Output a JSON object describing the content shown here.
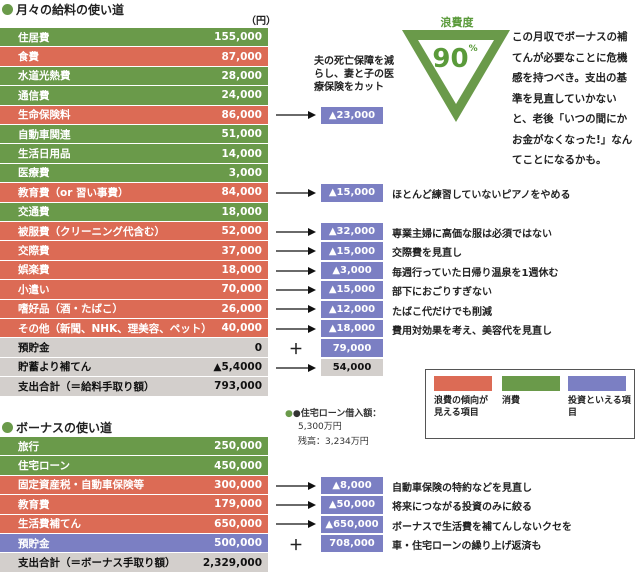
{
  "salary": {
    "title": "月々の給料の使い道",
    "unit": "（円）",
    "rows": [
      {
        "label": "住居費",
        "value": "155,000",
        "color": "green"
      },
      {
        "label": "食費",
        "value": "87,000",
        "color": "red"
      },
      {
        "label": "水道光熱費",
        "value": "28,000",
        "color": "green"
      },
      {
        "label": "通信費",
        "value": "24,000",
        "color": "green"
      },
      {
        "label": "生命保険料",
        "value": "86,000",
        "color": "red"
      },
      {
        "label": "自動車関連",
        "value": "51,000",
        "color": "green"
      },
      {
        "label": "生活日用品",
        "value": "14,000",
        "color": "green"
      },
      {
        "label": "医療費",
        "value": "3,000",
        "color": "green"
      },
      {
        "label": "教育費（or 習い事費）",
        "value": "84,000",
        "color": "red"
      },
      {
        "label": "交通費",
        "value": "18,000",
        "color": "green"
      },
      {
        "label": "被服費（クリーニング代含む）",
        "value": "52,000",
        "color": "red"
      },
      {
        "label": "交際費",
        "value": "37,000",
        "color": "red"
      },
      {
        "label": "娯楽費",
        "value": "18,000",
        "color": "red"
      },
      {
        "label": "小遣い",
        "value": "70,000",
        "color": "red"
      },
      {
        "label": "嗜好品（酒・たばこ）",
        "value": "26,000",
        "color": "red"
      },
      {
        "label": "その他（新聞、NHK、理美容、ペット）",
        "value": "40,000",
        "color": "red"
      },
      {
        "label": "預貯金",
        "value": "0",
        "color": "gray"
      },
      {
        "label": "貯蓄より補てん",
        "value": "▲5,4000",
        "color": "gray"
      },
      {
        "label": "支出合計（＝給料手取り額）",
        "value": "793,000",
        "color": "gray"
      }
    ],
    "adjustments": [
      {
        "row": 4,
        "sym": "→",
        "value": "▲23,000",
        "note": "",
        "box": "blue"
      },
      {
        "row": 8,
        "sym": "→",
        "value": "▲15,000",
        "note": "ほとんど練習していないピアノをやめる",
        "box": "blue"
      },
      {
        "row": 10,
        "sym": "→",
        "value": "▲32,000",
        "note": "専業主婦に高価な服は必須ではない",
        "box": "blue"
      },
      {
        "row": 11,
        "sym": "→",
        "value": "▲15,000",
        "note": "交際費を見直し",
        "box": "blue"
      },
      {
        "row": 12,
        "sym": "→",
        "value": "▲3,000",
        "note": "毎週行っていた日帰り温泉を1週休む",
        "box": "blue"
      },
      {
        "row": 13,
        "sym": "→",
        "value": "▲15,000",
        "note": "部下におごりすぎない",
        "box": "blue"
      },
      {
        "row": 14,
        "sym": "→",
        "value": "▲12,000",
        "note": "たばこ代だけでも削減",
        "box": "blue"
      },
      {
        "row": 15,
        "sym": "→",
        "value": "▲18,000",
        "note": "費用対効果を考え、美容代を見直し",
        "box": "blue"
      },
      {
        "row": 16,
        "sym": "＋",
        "value": "79,000",
        "note": "",
        "box": "blue"
      },
      {
        "row": 17,
        "sym": "→",
        "value": "54,000",
        "note": "",
        "box": "gray"
      }
    ],
    "insurance_note": "夫の死亡保障を減らし、妻と子の医療保険をカット"
  },
  "waste": {
    "label": "浪費度",
    "percent": "90",
    "percent_sign": "%",
    "comment": "この月収でボーナスの補てんが必要なことに危機感を持つべき。支出の基準を見直していかないと、老後「いつの間にかお金がなくなった!」なんてことになるかも。"
  },
  "legend": [
    {
      "label": "浪費の傾向が見える項目",
      "color": "#dc6b55"
    },
    {
      "label": "消費",
      "color": "#6a9a4a"
    },
    {
      "label": "投資といえる項目",
      "color": "#7b7fc3"
    }
  ],
  "loan": {
    "title": "●住宅ローン借入額：",
    "amount": "5,300万円",
    "remaining": "残高：3,234万円"
  },
  "bonus": {
    "title": "ボーナスの使い道",
    "rows": [
      {
        "label": "旅行",
        "value": "250,000",
        "color": "green"
      },
      {
        "label": "住宅ローン",
        "value": "450,000",
        "color": "green"
      },
      {
        "label": "固定資産税・自動車保険等",
        "value": "300,000",
        "color": "red"
      },
      {
        "label": "教育費",
        "value": "179,000",
        "color": "red"
      },
      {
        "label": "生活費補てん",
        "value": "650,000",
        "color": "red"
      },
      {
        "label": "預貯金",
        "value": "500,000",
        "color": "blue"
      },
      {
        "label": "支出合計（＝ボーナス手取り額）",
        "value": "2,329,000",
        "color": "gray"
      }
    ],
    "adjustments": [
      {
        "row": 2,
        "sym": "→",
        "value": "▲8,000",
        "note": "自動車保険の特約などを見直し",
        "box": "blue"
      },
      {
        "row": 3,
        "sym": "→",
        "value": "▲50,000",
        "note": "将来につながる投資のみに絞る",
        "box": "blue"
      },
      {
        "row": 4,
        "sym": "→",
        "value": "▲650,000",
        "note": "ボーナスで生活費を補てんしないクセを",
        "box": "blue"
      },
      {
        "row": 5,
        "sym": "＋",
        "value": "708,000",
        "note": "車・住宅ローンの繰り上げ返済も",
        "box": "blue"
      }
    ]
  }
}
